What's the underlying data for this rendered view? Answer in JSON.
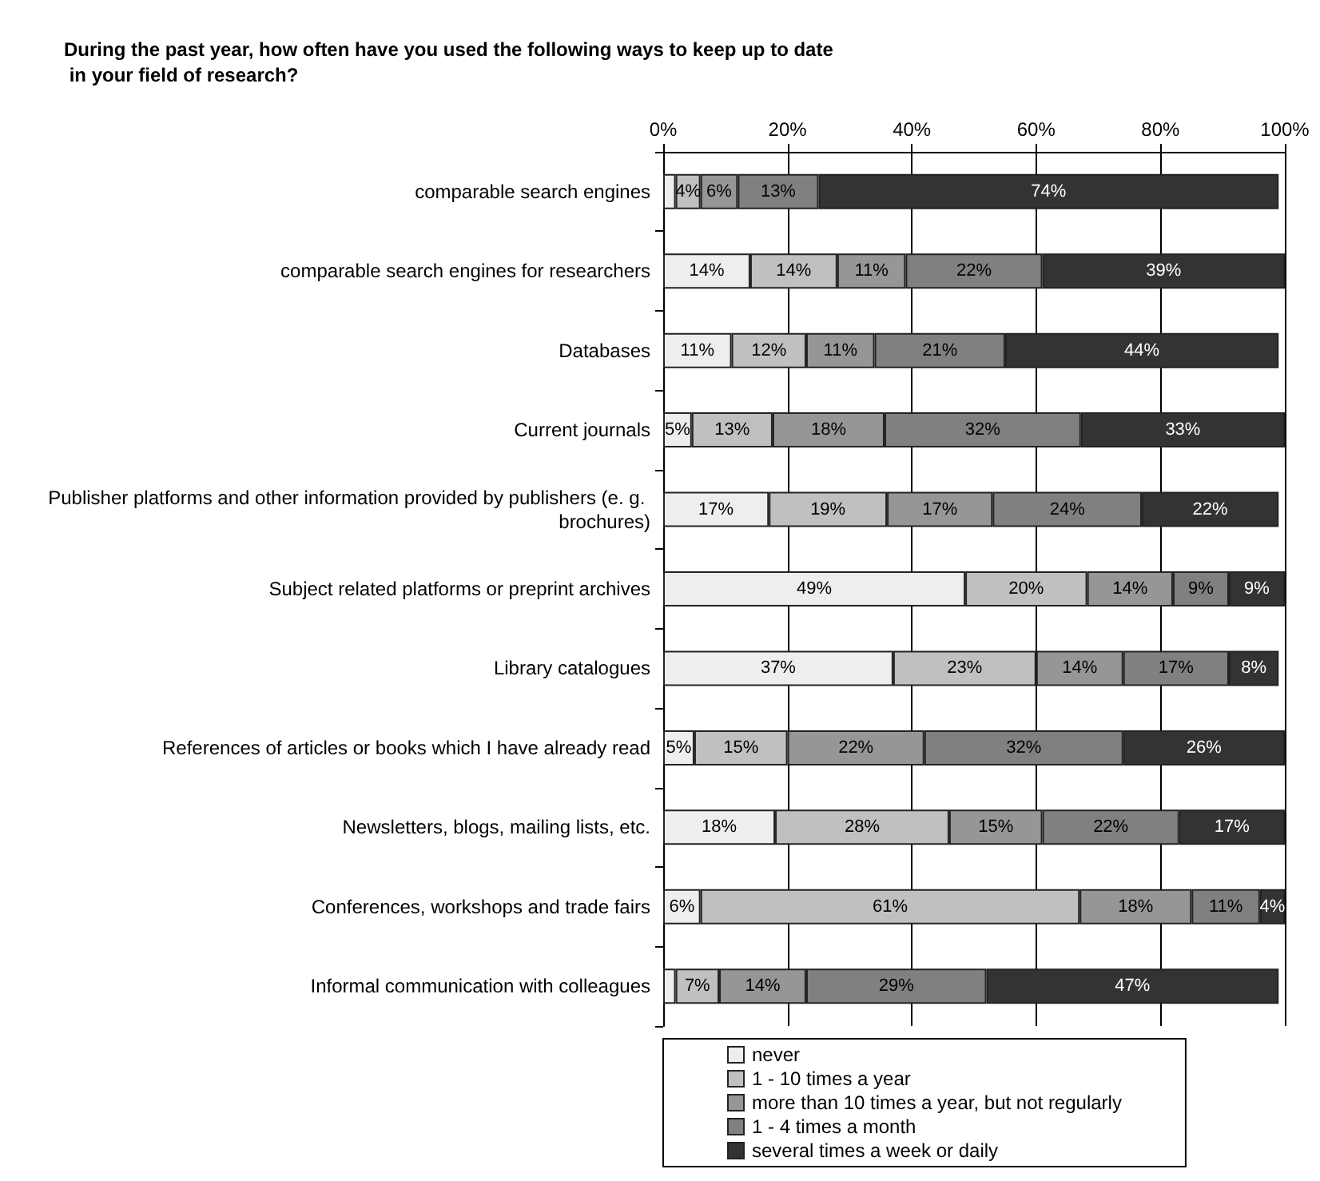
{
  "chart_data": {
    "type": "bar",
    "orientation": "horizontal",
    "stacked": true,
    "title": "During the past year, how often have you used the following ways to keep up to date in your field of research?",
    "categories": [
      "comparable search engines",
      "comparable search engines for researchers",
      "Databases",
      "Current journals",
      "Publisher platforms and other information provided by publishers (e. g. brochures)",
      "Subject related platforms or preprint archives",
      "Library catalogues",
      "References of articles or books which I have already read",
      "Newsletters, blogs, mailing lists, etc.",
      "Conferences, workshops and trade fairs",
      "Informal communication with colleagues"
    ],
    "series": [
      {
        "name": "never",
        "color": "#eeeeee",
        "values": [
          2,
          14,
          11,
          4.6,
          17,
          48.6,
          37,
          5,
          18,
          6,
          2
        ],
        "value_labels": [
          null,
          "14%",
          "11%",
          "5%",
          "17%",
          "49%",
          "37%",
          "5%",
          "18%",
          "6%",
          null
        ]
      },
      {
        "name": "1 - 10 times a year",
        "color": "#c0c0c0",
        "values": [
          4,
          14,
          12,
          13,
          19,
          19.6,
          23,
          15,
          28,
          61,
          7
        ],
        "value_labels": [
          "4%",
          "14%",
          "12%",
          "13%",
          "19%",
          "20%",
          "23%",
          "15%",
          "28%",
          "61%",
          "7%"
        ]
      },
      {
        "name": "more than 10 times a year, but not regularly",
        "color": "#969696",
        "values": [
          6,
          11,
          11,
          18,
          17,
          13.8,
          14,
          22,
          15,
          18,
          14
        ],
        "value_labels": [
          "6%",
          "11%",
          "11%",
          "18%",
          "17%",
          "14%",
          "14%",
          "22%",
          "15%",
          "18%",
          "14%"
        ]
      },
      {
        "name": "1 - 4 times a month",
        "color": "#808080",
        "values": [
          13,
          22,
          21,
          31.6,
          24,
          9,
          17,
          32,
          22,
          11,
          29
        ],
        "value_labels": [
          "13%",
          "22%",
          "21%",
          "32%",
          "24%",
          "9%",
          "17%",
          "32%",
          "22%",
          "11%",
          "29%"
        ]
      },
      {
        "name": "several times a week or daily",
        "color": "#333333",
        "values": [
          74,
          39,
          44,
          32.8,
          22,
          9,
          8,
          26,
          17,
          4,
          47
        ],
        "value_labels": [
          "74%",
          "39%",
          "44%",
          "33%",
          "22%",
          "9%",
          "8%",
          "26%",
          "17%",
          "4%",
          "47%"
        ]
      }
    ],
    "xlim": [
      0,
      100
    ],
    "xticks": [
      {
        "value": 0,
        "label": "0%"
      },
      {
        "value": 20,
        "label": "20%"
      },
      {
        "value": 40,
        "label": "40%"
      },
      {
        "value": 60,
        "label": "60%"
      },
      {
        "value": 80,
        "label": "80%"
      },
      {
        "value": 100,
        "label": "100%"
      }
    ],
    "grid": "x",
    "legend": "bottom"
  }
}
